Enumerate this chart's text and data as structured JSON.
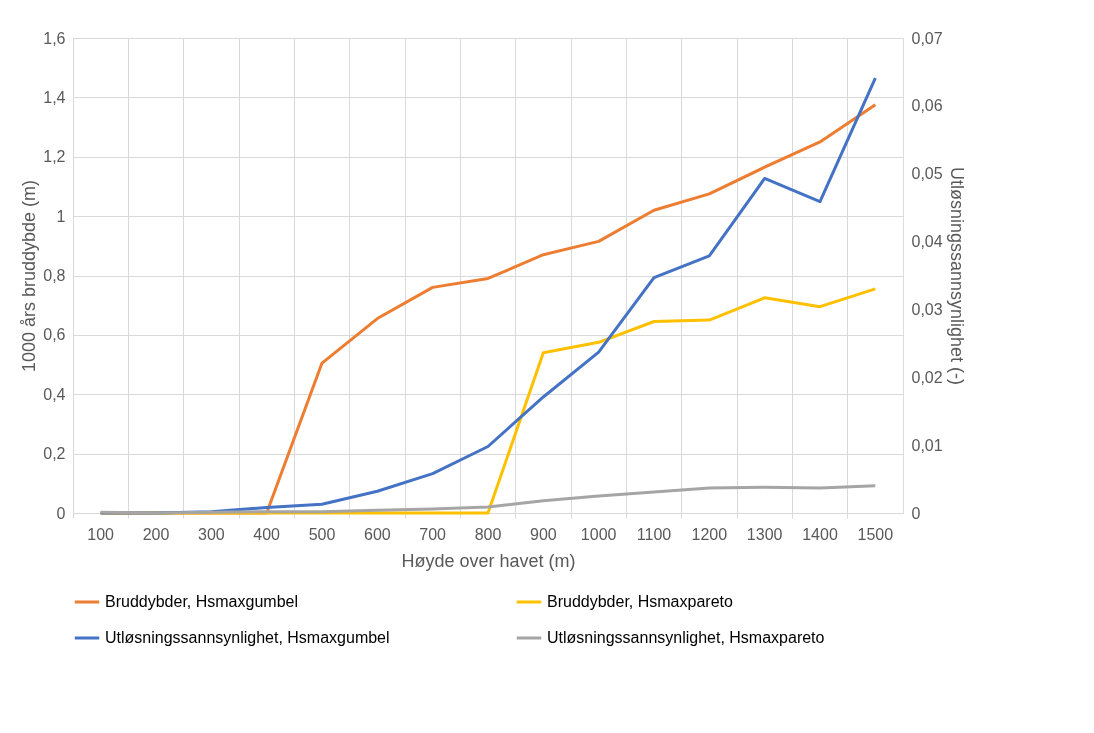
{
  "chart_data": {
    "type": "line",
    "xlabel": "Høyde over havet (m)",
    "ylabel": "1000 års bruddybde (m)",
    "y2label": "Utløsningssannsynlighet (-)",
    "categories": [
      "100",
      "200",
      "300",
      "400",
      "500",
      "600",
      "700",
      "800",
      "900",
      "1000",
      "1100",
      "1200",
      "1300",
      "1400",
      "1500"
    ],
    "ylim": [
      0,
      1.6
    ],
    "yticks": [
      0,
      {
        "value": 0.2,
        "label": "0,2"
      },
      {
        "value": 0.4,
        "label": "0,4"
      },
      {
        "value": 0.6,
        "label": "0,6"
      },
      {
        "value": 0.8,
        "label": "0,8"
      },
      1,
      {
        "value": 1.2,
        "label": "1,2"
      },
      {
        "value": 1.4,
        "label": "1,4"
      },
      {
        "value": 1.6,
        "label": "1,6"
      }
    ],
    "y2lim": [
      0,
      0.07
    ],
    "y2ticks": [
      0,
      {
        "value": 0.01,
        "label": "0,01"
      },
      {
        "value": 0.02,
        "label": "0,02"
      },
      {
        "value": 0.03,
        "label": "0,03"
      },
      {
        "value": 0.04,
        "label": "0,04"
      },
      {
        "value": 0.05,
        "label": "0,05"
      },
      {
        "value": 0.06,
        "label": "0,06"
      },
      {
        "value": 0.07,
        "label": "0,07"
      }
    ],
    "grid": true,
    "legend": "bottom",
    "marker": "none",
    "line_style": "solid",
    "series": [
      {
        "name": "Bruddybder, Hsmaxgumbel",
        "color": "#ed7d31",
        "values": [
          0,
          0,
          0,
          0,
          0.505,
          0.655,
          0.76,
          0.79,
          0.87,
          0.915,
          1.02,
          1.075,
          1.165,
          1.25,
          1.375
        ]
      },
      {
        "name": "Bruddybder, Hsmaxpareto",
        "color": "#ffc000",
        "values": [
          0,
          0,
          0,
          0,
          0,
          0,
          0,
          0,
          0.54,
          0.575,
          0.645,
          0.65,
          0.725,
          0.695,
          0.755
        ]
      },
      {
        "name": "Utløsningssannsynlighet, Hsmaxgumbel",
        "color": "#4472c4",
        "axis": "y2",
        "values": [
          0,
          0,
          0.0002,
          0.0008,
          0.0013,
          0.0032,
          0.0058,
          0.0098,
          0.0171,
          0.0237,
          0.0347,
          0.0379,
          0.0493,
          0.0459,
          0.0641
        ]
      },
      {
        "name": "Utløsningssannsynlighet, Hsmaxpareto",
        "color": "#a5a5a5",
        "axis": "y2",
        "values": [
          0.0001,
          0,
          0.0001,
          0.0002,
          0.0002,
          0.0004,
          0.0006,
          0.0009,
          0.0018,
          0.0025,
          0.0031,
          0.0037,
          0.0038,
          0.0037,
          0.004
        ]
      }
    ]
  }
}
